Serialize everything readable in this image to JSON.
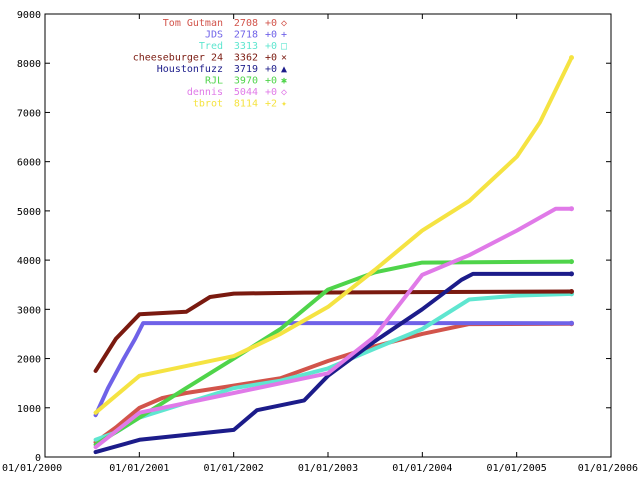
{
  "chart_data": {
    "type": "line",
    "title": "",
    "xlabel": "",
    "ylabel": "",
    "xlim": [
      "2000-01-01",
      "2006-01-01"
    ],
    "ylim": [
      0,
      9000
    ],
    "yticks": [
      0,
      1000,
      2000,
      3000,
      4000,
      5000,
      6000,
      7000,
      8000,
      9000
    ],
    "xticks": [
      "01/01/2000",
      "01/01/2001",
      "01/01/2002",
      "01/01/2003",
      "01/01/2004",
      "01/01/2005",
      "01/01/2006"
    ],
    "grid": false,
    "legend": "top-left",
    "series": [
      {
        "name": "Tom Gutman",
        "value_label": "2708",
        "change_label": "+0",
        "marker": "◇",
        "color": "#d2544b",
        "points": [
          [
            "2000-07-15",
            300
          ],
          [
            "2000-10-01",
            600
          ],
          [
            "2001-01-01",
            1000
          ],
          [
            "2001-04-01",
            1200
          ],
          [
            "2001-07-01",
            1300
          ],
          [
            "2002-01-01",
            1450
          ],
          [
            "2002-07-01",
            1600
          ],
          [
            "2003-01-01",
            1950
          ],
          [
            "2003-07-01",
            2250
          ],
          [
            "2004-01-01",
            2500
          ],
          [
            "2004-07-01",
            2700
          ],
          [
            "2005-08-01",
            2708
          ]
        ]
      },
      {
        "name": "JDS",
        "value_label": "2718",
        "change_label": "+0",
        "marker": "+",
        "color": "#6f62e8",
        "points": [
          [
            "2000-07-15",
            850
          ],
          [
            "2000-09-01",
            1400
          ],
          [
            "2000-11-01",
            2000
          ],
          [
            "2000-12-15",
            2400
          ],
          [
            "2001-01-15",
            2720
          ],
          [
            "2005-08-01",
            2718
          ]
        ]
      },
      {
        "name": "Tred",
        "value_label": "3313",
        "change_label": "+0",
        "marker": "□",
        "color": "#5fe6d0",
        "points": [
          [
            "2000-07-15",
            350
          ],
          [
            "2000-10-01",
            500
          ],
          [
            "2001-01-01",
            800
          ],
          [
            "2001-07-01",
            1100
          ],
          [
            "2002-01-01",
            1400
          ],
          [
            "2002-07-01",
            1550
          ],
          [
            "2003-01-01",
            1800
          ],
          [
            "2003-07-01",
            2200
          ],
          [
            "2004-01-01",
            2600
          ],
          [
            "2004-07-01",
            3200
          ],
          [
            "2005-01-01",
            3280
          ],
          [
            "2005-08-01",
            3313
          ]
        ]
      },
      {
        "name": "cheeseburger 24",
        "value_label": "3362",
        "change_label": "+0",
        "marker": "×",
        "color": "#7a1a10",
        "points": [
          [
            "2000-07-15",
            1750
          ],
          [
            "2000-10-01",
            2400
          ],
          [
            "2001-01-01",
            2900
          ],
          [
            "2001-07-01",
            2950
          ],
          [
            "2001-10-01",
            3250
          ],
          [
            "2002-01-01",
            3320
          ],
          [
            "2002-10-01",
            3340
          ],
          [
            "2005-08-01",
            3362
          ]
        ]
      },
      {
        "name": "Houstonfuzz",
        "value_label": "3719",
        "change_label": "+0",
        "marker": "▲",
        "color": "#1c1c8a",
        "points": [
          [
            "2000-07-15",
            100
          ],
          [
            "2001-01-01",
            350
          ],
          [
            "2002-01-01",
            550
          ],
          [
            "2002-04-01",
            950
          ],
          [
            "2002-10-01",
            1150
          ],
          [
            "2003-01-01",
            1650
          ],
          [
            "2003-07-01",
            2350
          ],
          [
            "2004-01-01",
            3000
          ],
          [
            "2004-06-01",
            3600
          ],
          [
            "2004-07-15",
            3719
          ],
          [
            "2005-08-01",
            3719
          ]
        ]
      },
      {
        "name": "RJL",
        "value_label": "3970",
        "change_label": "+0",
        "marker": "✱",
        "color": "#4fd44a",
        "points": [
          [
            "2000-07-15",
            250
          ],
          [
            "2001-01-01",
            800
          ],
          [
            "2001-07-01",
            1400
          ],
          [
            "2002-01-01",
            2000
          ],
          [
            "2002-07-01",
            2600
          ],
          [
            "2002-10-01",
            3000
          ],
          [
            "2003-01-01",
            3400
          ],
          [
            "2003-07-01",
            3750
          ],
          [
            "2004-01-01",
            3950
          ],
          [
            "2005-08-01",
            3970
          ]
        ]
      },
      {
        "name": "dennis",
        "value_label": "5044",
        "change_label": "+0",
        "marker": "◇",
        "color": "#e07ae8",
        "points": [
          [
            "2000-07-15",
            200
          ],
          [
            "2001-01-01",
            900
          ],
          [
            "2002-01-01",
            1300
          ],
          [
            "2003-01-01",
            1700
          ],
          [
            "2003-07-01",
            2450
          ],
          [
            "2004-01-01",
            3700
          ],
          [
            "2004-07-01",
            4100
          ],
          [
            "2005-01-01",
            4600
          ],
          [
            "2005-06-01",
            5044
          ],
          [
            "2005-08-01",
            5044
          ]
        ]
      },
      {
        "name": "tbrot",
        "value_label": "8114",
        "change_label": "+2",
        "marker": "✦",
        "color": "#f5e342",
        "points": [
          [
            "2000-07-15",
            900
          ],
          [
            "2001-01-01",
            1650
          ],
          [
            "2002-01-01",
            2050
          ],
          [
            "2002-07-01",
            2500
          ],
          [
            "2003-01-01",
            3050
          ],
          [
            "2003-07-01",
            3800
          ],
          [
            "2004-01-01",
            4600
          ],
          [
            "2004-07-01",
            5200
          ],
          [
            "2005-01-01",
            6100
          ],
          [
            "2005-04-01",
            6800
          ],
          [
            "2005-08-01",
            8114
          ]
        ]
      }
    ]
  }
}
